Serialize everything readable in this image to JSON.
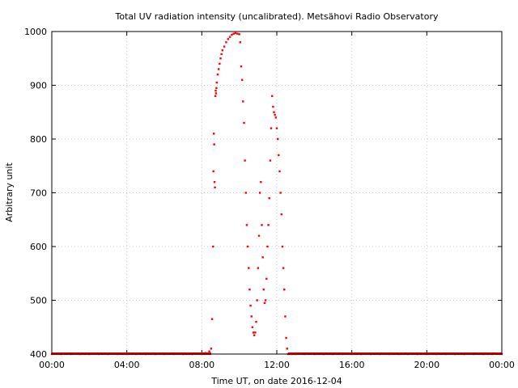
{
  "chart_data": {
    "type": "scatter",
    "title": "Total UV radiation intensity (uncalibrated). Metsähovi Radio Observatory",
    "xlabel": "Time UT, on date 2016-12-04",
    "ylabel": "Arbitrary unit",
    "xlim": [
      "00:00",
      "24:00"
    ],
    "ylim": [
      400,
      1000
    ],
    "x_ticks": [
      "00:00",
      "04:00",
      "08:00",
      "12:00",
      "16:00",
      "20:00",
      "00:00"
    ],
    "y_ticks": [
      400,
      500,
      600,
      700,
      800,
      900,
      1000
    ],
    "grid": true,
    "marker_color": "#ff0000",
    "series": [
      {
        "x_hours": [
          0.0,
          0.5,
          1.0,
          1.5,
          2.0,
          2.5,
          3.0,
          3.5,
          4.0,
          4.5,
          5.0,
          5.5,
          6.0,
          6.5,
          7.0,
          7.5,
          8.0,
          8.2,
          8.4,
          8.5,
          8.55,
          8.6,
          8.62,
          8.64,
          8.66,
          8.68,
          8.7,
          8.72,
          8.74,
          8.76,
          8.78,
          8.8,
          8.85,
          8.9,
          8.95,
          9.0,
          9.05,
          9.1,
          9.2,
          9.3,
          9.4,
          9.5,
          9.6,
          9.7,
          9.8,
          9.9,
          10.0,
          10.05,
          10.1,
          10.15,
          10.2,
          10.25,
          10.3,
          10.35,
          10.4,
          10.45,
          10.5,
          10.55,
          10.6,
          10.65,
          10.7,
          10.75,
          10.8,
          10.85,
          10.9,
          10.95,
          11.0,
          11.05,
          11.1,
          11.15,
          11.2,
          11.25,
          11.3,
          11.35,
          11.4,
          11.45,
          11.5,
          11.55,
          11.6,
          11.65,
          11.7,
          11.75,
          11.8,
          11.85,
          11.9,
          11.95,
          12.0,
          12.05,
          12.1,
          12.15,
          12.2,
          12.25,
          12.3,
          12.35,
          12.4,
          12.45,
          12.5,
          12.55,
          12.6,
          12.8,
          13.0,
          13.5,
          14.0,
          14.5,
          15.0,
          15.5,
          16.0,
          16.5,
          17.0,
          17.5,
          18.0,
          18.5,
          19.0,
          19.5,
          20.0,
          20.5,
          21.0,
          21.5,
          22.0,
          22.5,
          23.0,
          23.5,
          24.0
        ],
        "values": [
          400,
          400,
          400,
          400,
          400,
          400,
          400,
          400,
          400,
          400,
          400,
          400,
          400,
          400,
          400,
          400,
          400,
          402,
          405,
          410,
          465,
          600,
          740,
          810,
          790,
          720,
          710,
          880,
          890,
          885,
          895,
          905,
          920,
          930,
          940,
          950,
          958,
          965,
          972,
          980,
          986,
          990,
          994,
          996,
          997,
          996,
          995,
          980,
          935,
          910,
          870,
          830,
          760,
          700,
          640,
          600,
          560,
          520,
          490,
          470,
          450,
          440,
          435,
          440,
          460,
          500,
          560,
          620,
          700,
          720,
          640,
          580,
          520,
          495,
          500,
          540,
          600,
          640,
          690,
          760,
          820,
          880,
          860,
          850,
          845,
          840,
          820,
          800,
          770,
          740,
          700,
          660,
          600,
          560,
          520,
          470,
          430,
          410,
          400,
          400,
          400,
          400,
          400,
          400,
          400,
          400,
          400,
          400,
          400,
          400,
          400,
          400,
          400,
          400,
          400,
          400,
          400,
          400,
          400,
          400,
          400,
          400,
          400
        ]
      }
    ]
  }
}
